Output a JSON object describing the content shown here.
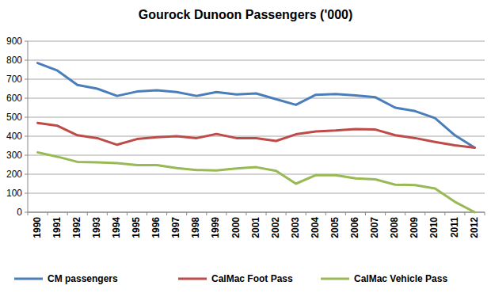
{
  "chart_data": {
    "type": "line",
    "title": "Gourock Dunoon Passengers ('000)",
    "categories": [
      "1990",
      "1991",
      "1992",
      "1993",
      "1994",
      "1995",
      "1996",
      "1997",
      "1998",
      "1999",
      "2000",
      "2001",
      "2002",
      "2003",
      "2004",
      "2005",
      "2006",
      "2007",
      "2008",
      "2009",
      "2010",
      "2011",
      "2012"
    ],
    "series": [
      {
        "name": "CM passengers",
        "color": "#4a7ebb",
        "values": [
          785,
          745,
          670,
          650,
          612,
          635,
          642,
          632,
          612,
          632,
          620,
          625,
          595,
          565,
          618,
          622,
          615,
          605,
          550,
          532,
          495,
          405,
          340
        ]
      },
      {
        "name": "CalMac Foot Pass",
        "color": "#be4b48",
        "values": [
          470,
          455,
          405,
          390,
          355,
          385,
          395,
          400,
          390,
          412,
          390,
          390,
          375,
          410,
          425,
          430,
          438,
          435,
          405,
          390,
          370,
          352,
          340
        ]
      },
      {
        "name": "CalMac Vehicle Pass",
        "color": "#98b954",
        "values": [
          315,
          292,
          265,
          262,
          258,
          248,
          248,
          232,
          222,
          220,
          230,
          237,
          218,
          150,
          195,
          195,
          178,
          173,
          145,
          143,
          125,
          55,
          0
        ]
      }
    ],
    "ylim": [
      0,
      900
    ],
    "yticks": [
      0,
      100,
      200,
      300,
      400,
      500,
      600,
      700,
      800,
      900
    ],
    "grid": true,
    "legend": "bottom"
  }
}
